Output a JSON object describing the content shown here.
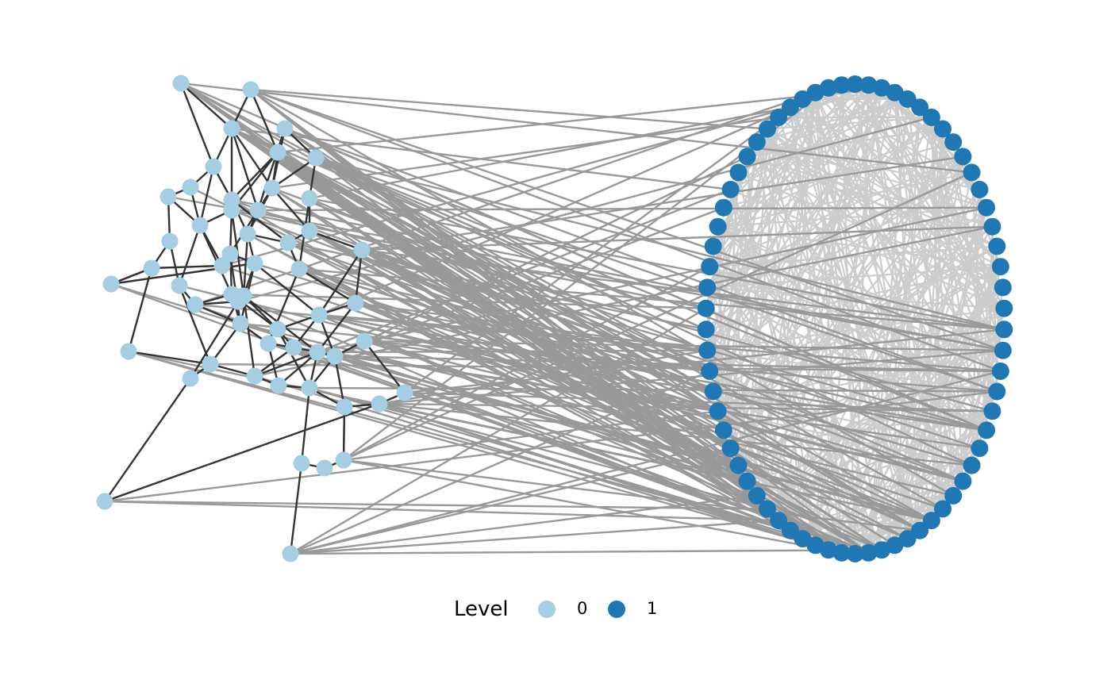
{
  "legend": {
    "title": "Level",
    "entries": [
      {
        "label": "0",
        "color": "#a6cee3"
      },
      {
        "label": "1",
        "color": "#1f78b4"
      }
    ]
  },
  "colors": {
    "edge_within_level0": "#333333",
    "edge_between_levels": "#999999",
    "edge_within_level1": "#cccccc"
  },
  "diagram": {
    "type": "multilevel-network",
    "level0_node_count": 54,
    "level1_node_count": 70,
    "level1_layout": "circle"
  }
}
